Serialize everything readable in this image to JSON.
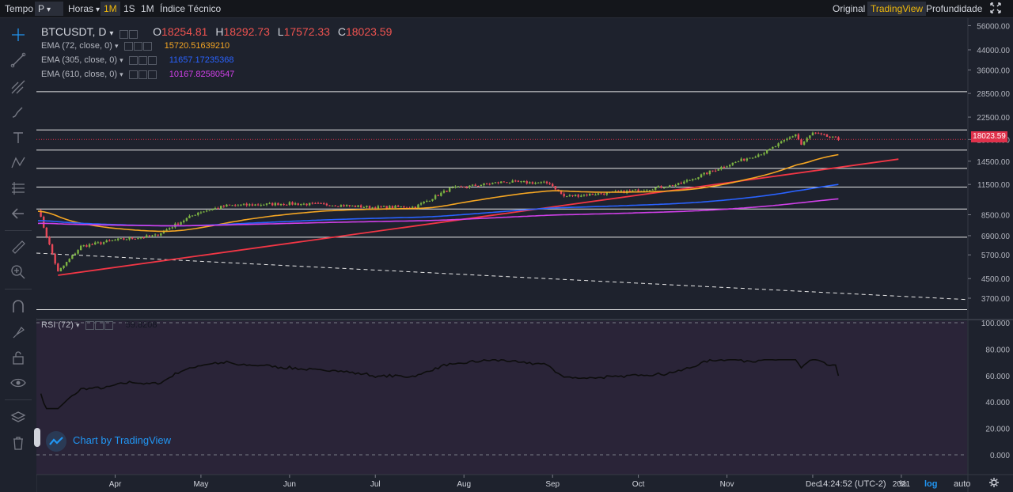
{
  "topbar": {
    "tempo": "Tempo",
    "p": "P",
    "horas": "Horas",
    "int_1m": "1M",
    "int_1s": "1S",
    "int_1m_b": "1M",
    "indicators": "Índice Técnico",
    "view_original": "Original",
    "view_tradingview": "TradingView",
    "view_depth": "Profundidade"
  },
  "legend": {
    "symbol": "BTCUSDT, D",
    "o_label": "O",
    "o_value": "18254.81",
    "h_label": "H",
    "h_value": "18292.73",
    "l_label": "L",
    "l_value": "17572.33",
    "c_label": "C",
    "c_value": "18023.59",
    "ema1_label": "EMA (72, close, 0)",
    "ema1_value": "15720.51639210",
    "ema2_label": "EMA (305, close, 0)",
    "ema2_value": "11657.17235368",
    "ema3_label": "EMA (610, close, 0)",
    "ema3_value": "10167.82580547",
    "rsi_label": "RSI (72)",
    "rsi_value": "59.8208"
  },
  "price_badge": "18023.59",
  "watermark": "Chart by TradingView",
  "footer": {
    "time": "14:24:52 (UTC-2)",
    "percent": "%",
    "log": "log",
    "auto": "auto"
  },
  "colors": {
    "up": "#26a69a",
    "down": "#ef5350",
    "ema72": "#f5a623",
    "ema305": "#2962ff",
    "ema610": "#d040e8",
    "trend": "#f23645",
    "accent": "#f0b90b",
    "candle_up": "#7cb342",
    "candle_down": "#e84858"
  },
  "chart_data": {
    "type": "candlestick",
    "symbol": "BTCUSDT, D",
    "scale": "log",
    "y_ticks": [
      56000,
      44000,
      36000,
      28500,
      22500,
      18000,
      14500,
      11500,
      8500,
      6900,
      5700,
      4500,
      3700
    ],
    "y_tick_labels": [
      "56000.00",
      "44000.00",
      "36000.00",
      "28500.00",
      "22500.00",
      "18000.00",
      "14500.00",
      "11500.00",
      "8500.00",
      "6900.00",
      "5700.00",
      "4500.00",
      "3700.00"
    ],
    "x_labels": [
      "Apr",
      "May",
      "Jun",
      "Jul",
      "Aug",
      "Sep",
      "Oct",
      "Nov",
      "Dec",
      "2021"
    ],
    "x_label_dates": [
      "2020-04-01",
      "2020-05-01",
      "2020-06-01",
      "2020-07-01",
      "2020-08-01",
      "2020-09-01",
      "2020-10-01",
      "2020-11-01",
      "2020-12-01",
      "2021-01-01"
    ],
    "x_range": [
      "2020-03-05",
      "2021-01-24"
    ],
    "horizontal_levels": [
      29000,
      19800,
      16200,
      13500,
      11200,
      9000,
      6800,
      3300
    ],
    "ohlc_monthly_anchor": [
      {
        "date": "2020-03-05",
        "close": 9000
      },
      {
        "date": "2020-03-12",
        "close": 4800
      },
      {
        "date": "2020-03-20",
        "close": 6200
      },
      {
        "date": "2020-04-01",
        "close": 6600
      },
      {
        "date": "2020-04-15",
        "close": 6900
      },
      {
        "date": "2020-04-30",
        "close": 8700
      },
      {
        "date": "2020-05-10",
        "close": 9300
      },
      {
        "date": "2020-05-31",
        "close": 9500
      },
      {
        "date": "2020-06-15",
        "close": 9400
      },
      {
        "date": "2020-06-30",
        "close": 9150
      },
      {
        "date": "2020-07-15",
        "close": 9200
      },
      {
        "date": "2020-07-27",
        "close": 11000
      },
      {
        "date": "2020-08-15",
        "close": 11800
      },
      {
        "date": "2020-08-31",
        "close": 11650
      },
      {
        "date": "2020-09-05",
        "close": 10200
      },
      {
        "date": "2020-09-30",
        "close": 10800
      },
      {
        "date": "2020-10-15",
        "close": 11500
      },
      {
        "date": "2020-10-31",
        "close": 13800
      },
      {
        "date": "2020-11-15",
        "close": 16000
      },
      {
        "date": "2020-11-25",
        "close": 19000
      },
      {
        "date": "2020-11-27",
        "close": 17100
      },
      {
        "date": "2020-12-01",
        "close": 19200
      },
      {
        "date": "2020-12-10",
        "close": 18023.59
      }
    ],
    "ema72_last": 15720.5163921,
    "ema305_last": 11657.17235368,
    "ema610_last": 10167.82580547,
    "rsi": {
      "period": 72,
      "last": 59.8208,
      "y_ticks": [
        100,
        80,
        60,
        40,
        20,
        0
      ],
      "y_tick_labels": [
        "100.000",
        "80.000",
        "60.000",
        "40.000",
        "20.000",
        "0.000"
      ],
      "levels": [
        100,
        0
      ]
    }
  }
}
